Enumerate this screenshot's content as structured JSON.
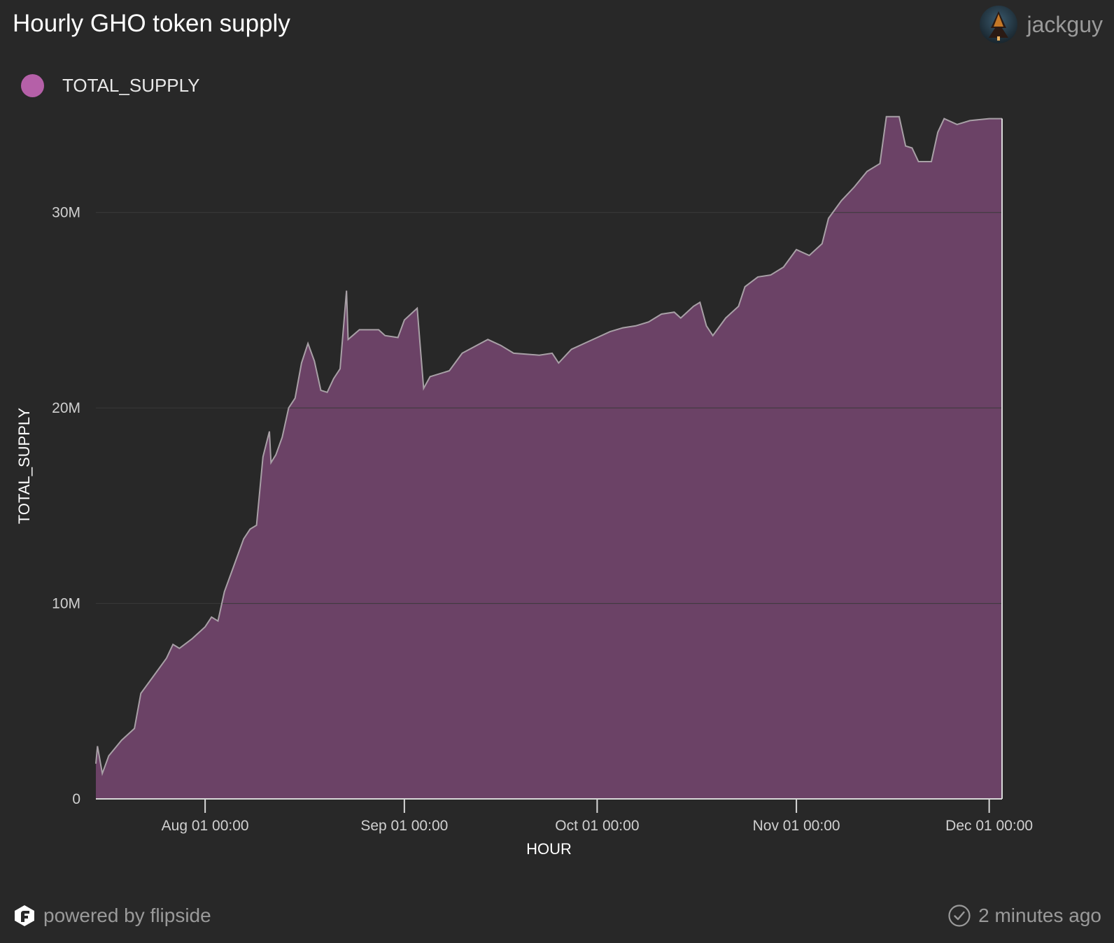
{
  "header": {
    "title": "Hourly GHO token supply",
    "username": "jackguy",
    "avatar_icon": "forest-avatar-icon"
  },
  "legend": {
    "label": "TOTAL_SUPPLY",
    "color": "#b560a8"
  },
  "footer": {
    "brand": "powered by flipside",
    "brand_icon": "flipside-logo-icon",
    "updated": "2 minutes ago",
    "updated_icon": "check-circle-icon"
  },
  "chart_data": {
    "type": "area",
    "xlabel": "HOUR",
    "ylabel": "TOTAL_SUPPLY",
    "x_start": "2023-07-15",
    "x_end": "2023-12-03",
    "x_ticks": [
      {
        "date": "2023-08-01",
        "label": "Aug 01 00:00"
      },
      {
        "date": "2023-09-01",
        "label": "Sep 01 00:00"
      },
      {
        "date": "2023-10-01",
        "label": "Oct 01 00:00"
      },
      {
        "date": "2023-11-01",
        "label": "Nov 01 00:00"
      },
      {
        "date": "2023-12-01",
        "label": "Dec 01 00:00"
      }
    ],
    "y_ticks": [
      {
        "value": 0,
        "label": "0"
      },
      {
        "value": 10000000,
        "label": "10M"
      },
      {
        "value": 20000000,
        "label": "20M"
      },
      {
        "value": 30000000,
        "label": "30M"
      }
    ],
    "ylim": [
      0,
      35500000
    ],
    "grid": true,
    "legend_position": "top-left",
    "fill_color": "#6b4266",
    "line_color": "#a8a0a6",
    "series": [
      {
        "name": "TOTAL_SUPPLY",
        "points": [
          [
            "2023-07-15",
            1800000
          ],
          [
            "2023-07-15",
            2700000
          ],
          [
            "2023-07-16",
            1300000
          ],
          [
            "2023-07-17",
            2200000
          ],
          [
            "2023-07-19",
            3000000
          ],
          [
            "2023-07-21",
            3600000
          ],
          [
            "2023-07-22",
            5400000
          ],
          [
            "2023-07-24",
            6300000
          ],
          [
            "2023-07-26",
            7200000
          ],
          [
            "2023-07-27",
            7900000
          ],
          [
            "2023-07-28",
            7700000
          ],
          [
            "2023-07-30",
            8200000
          ],
          [
            "2023-08-01",
            8800000
          ],
          [
            "2023-08-02",
            9300000
          ],
          [
            "2023-08-03",
            9100000
          ],
          [
            "2023-08-04",
            10600000
          ],
          [
            "2023-08-05",
            11500000
          ],
          [
            "2023-08-07",
            13300000
          ],
          [
            "2023-08-08",
            13800000
          ],
          [
            "2023-08-09",
            14000000
          ],
          [
            "2023-08-10",
            17500000
          ],
          [
            "2023-08-11",
            18800000
          ],
          [
            "2023-08-11",
            17200000
          ],
          [
            "2023-08-12",
            17600000
          ],
          [
            "2023-08-13",
            18500000
          ],
          [
            "2023-08-14",
            20000000
          ],
          [
            "2023-08-15",
            20500000
          ],
          [
            "2023-08-16",
            22300000
          ],
          [
            "2023-08-17",
            23300000
          ],
          [
            "2023-08-18",
            22400000
          ],
          [
            "2023-08-19",
            20900000
          ],
          [
            "2023-08-20",
            20800000
          ],
          [
            "2023-08-21",
            21500000
          ],
          [
            "2023-08-22",
            22000000
          ],
          [
            "2023-08-23",
            26000000
          ],
          [
            "2023-08-23",
            23500000
          ],
          [
            "2023-08-25",
            24000000
          ],
          [
            "2023-08-28",
            24000000
          ],
          [
            "2023-08-29",
            23700000
          ],
          [
            "2023-08-31",
            23600000
          ],
          [
            "2023-09-01",
            24500000
          ],
          [
            "2023-09-03",
            25100000
          ],
          [
            "2023-09-04",
            21000000
          ],
          [
            "2023-09-05",
            21600000
          ],
          [
            "2023-09-08",
            21900000
          ],
          [
            "2023-09-10",
            22800000
          ],
          [
            "2023-09-14",
            23500000
          ],
          [
            "2023-09-16",
            23200000
          ],
          [
            "2023-09-18",
            22800000
          ],
          [
            "2023-09-22",
            22700000
          ],
          [
            "2023-09-24",
            22800000
          ],
          [
            "2023-09-25",
            22300000
          ],
          [
            "2023-09-27",
            23000000
          ],
          [
            "2023-09-29",
            23300000
          ],
          [
            "2023-10-01",
            23600000
          ],
          [
            "2023-10-03",
            23900000
          ],
          [
            "2023-10-05",
            24100000
          ],
          [
            "2023-10-07",
            24200000
          ],
          [
            "2023-10-09",
            24400000
          ],
          [
            "2023-10-11",
            24800000
          ],
          [
            "2023-10-13",
            24900000
          ],
          [
            "2023-10-14",
            24600000
          ],
          [
            "2023-10-16",
            25200000
          ],
          [
            "2023-10-17",
            25400000
          ],
          [
            "2023-10-18",
            24200000
          ],
          [
            "2023-10-19",
            23700000
          ],
          [
            "2023-10-21",
            24600000
          ],
          [
            "2023-10-23",
            25200000
          ],
          [
            "2023-10-24",
            26200000
          ],
          [
            "2023-10-26",
            26700000
          ],
          [
            "2023-10-28",
            26800000
          ],
          [
            "2023-10-30",
            27200000
          ],
          [
            "2023-11-01",
            28100000
          ],
          [
            "2023-11-03",
            27800000
          ],
          [
            "2023-11-05",
            28400000
          ],
          [
            "2023-11-06",
            29700000
          ],
          [
            "2023-11-08",
            30600000
          ],
          [
            "2023-11-10",
            31300000
          ],
          [
            "2023-11-12",
            32100000
          ],
          [
            "2023-11-14",
            32500000
          ],
          [
            "2023-11-15",
            34900000
          ],
          [
            "2023-11-17",
            34900000
          ],
          [
            "2023-11-18",
            33400000
          ],
          [
            "2023-11-19",
            33300000
          ],
          [
            "2023-11-20",
            32600000
          ],
          [
            "2023-11-22",
            32600000
          ],
          [
            "2023-11-23",
            34100000
          ],
          [
            "2023-11-24",
            34800000
          ],
          [
            "2023-11-26",
            34500000
          ],
          [
            "2023-11-28",
            34700000
          ],
          [
            "2023-12-01",
            34800000
          ],
          [
            "2023-12-03",
            34800000
          ]
        ]
      }
    ]
  }
}
